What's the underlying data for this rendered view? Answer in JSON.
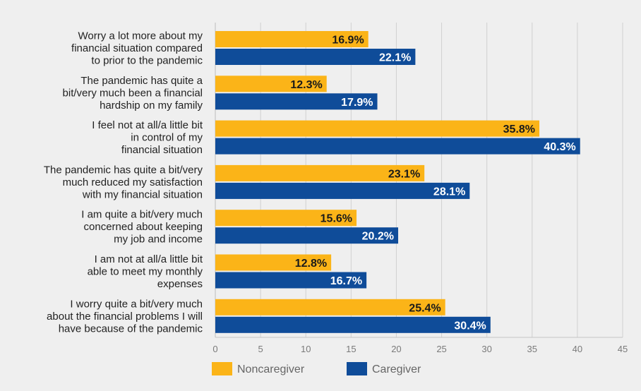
{
  "chart_data": {
    "type": "bar",
    "orientation": "horizontal",
    "categories": [
      [
        "Worry a lot more about my",
        "financial situation compared",
        "to prior to the pandemic"
      ],
      [
        "The pandemic has quite a",
        "bit/very much been a financial",
        "hardship on my family"
      ],
      [
        "I feel not at all/a little bit",
        "in control of my",
        "financial situation"
      ],
      [
        "The pandemic has quite a bit/very",
        "much reduced my satisfaction",
        "with my financial situation"
      ],
      [
        "I am quite a bit/very much",
        "concerned about keeping",
        "my job and income"
      ],
      [
        "I am not at all/a little bit",
        "able to meet my monthly",
        "expenses"
      ],
      [
        "I worry quite a bit/very much",
        "about the financial problems I will",
        "have because of the pandemic"
      ]
    ],
    "series": [
      {
        "name": "Noncaregiver",
        "color": "#fbb418",
        "label_color": "#1a1a1a",
        "values": [
          16.9,
          12.3,
          35.8,
          23.1,
          15.6,
          12.8,
          25.4
        ],
        "labels": [
          "16.9%",
          "12.3%",
          "35.8%",
          "23.1%",
          "15.6%",
          "12.8%",
          "25.4%"
        ]
      },
      {
        "name": "Caregiver",
        "color": "#0f4c99",
        "label_color": "#ffffff",
        "values": [
          22.1,
          17.9,
          40.3,
          28.1,
          20.2,
          16.7,
          30.4
        ],
        "labels": [
          "22.1%",
          "17.9%",
          "40.3%",
          "28.1%",
          "20.2%",
          "16.7%",
          "30.4%"
        ]
      }
    ],
    "xlim": [
      0,
      45
    ],
    "xticks": [
      0,
      5,
      10,
      15,
      20,
      25,
      30,
      35,
      40,
      45
    ],
    "tick_labels": [
      "0",
      "5",
      "10",
      "15",
      "20",
      "25",
      "30",
      "35",
      "40",
      "45"
    ],
    "grid": true,
    "legend_position": "bottom-left"
  }
}
